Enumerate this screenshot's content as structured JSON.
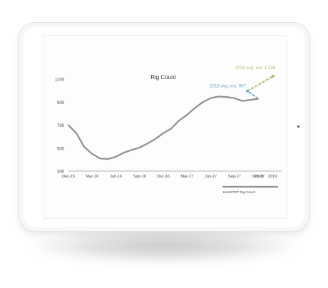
{
  "chart_data": {
    "type": "line",
    "title": "Rig Count",
    "xlabel": "",
    "ylabel": "",
    "ylim": [
      300,
      1200
    ],
    "yticks": [
      300,
      500,
      700,
      900,
      1100
    ],
    "xtick_labels": [
      "Dec-15",
      "Mar-16",
      "Jun-16",
      "Sep-16",
      "Dec-16",
      "Mar-17",
      "Jun-17",
      "Sep-17",
      "Dec-17",
      "2018",
      "2019"
    ],
    "grid": false,
    "legend": "bottom-right",
    "series": [
      {
        "name": "BAKETOT Rig Count",
        "color": "#8f8f8f",
        "x": [
          "Dec-15",
          "Jan-16",
          "Feb-16",
          "Mar-16",
          "Apr-16",
          "May-16",
          "Jun-16",
          "Jul-16",
          "Aug-16",
          "Sep-16",
          "Oct-16",
          "Nov-16",
          "Dec-16",
          "Jan-17",
          "Feb-17",
          "Mar-17",
          "Apr-17",
          "May-17",
          "Jun-17",
          "Jul-17",
          "Aug-17",
          "Sep-17",
          "Oct-17",
          "Nov-17",
          "Dec-17"
        ],
        "values": [
          700,
          630,
          510,
          450,
          410,
          405,
          425,
          460,
          485,
          505,
          540,
          580,
          630,
          670,
          740,
          790,
          850,
          900,
          935,
          950,
          945,
          935,
          910,
          920,
          930
        ]
      }
    ],
    "annotations": [
      {
        "text": "2018 avg. est. 997",
        "x": "2018",
        "y": 997,
        "color": "#6baed6"
      },
      {
        "text": "2019 avg. est. 1,126",
        "x": "2019",
        "y": 1126,
        "color": "#a9c25a"
      }
    ]
  }
}
